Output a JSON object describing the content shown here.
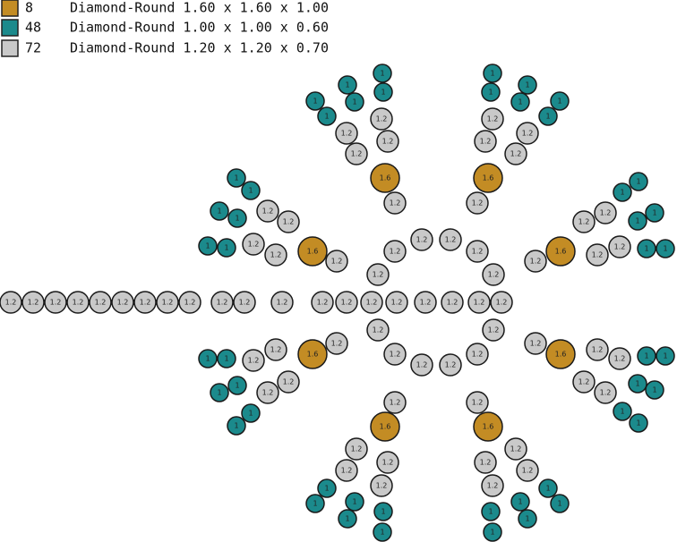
{
  "legend": [
    {
      "count": 8,
      "description": "Diamond-Round 1.60 x 1.60 x 1.00",
      "stone_label": "1.6",
      "color": "#c38c24"
    },
    {
      "count": 48,
      "description": "Diamond-Round 1.00 x 1.00 x 0.60",
      "stone_label": "1",
      "color": "#1b8a8c"
    },
    {
      "count": 72,
      "description": "Diamond-Round 1.20 x 1.20 x 0.70",
      "stone_label": "1.2",
      "color": "#c9c9c9"
    }
  ]
}
